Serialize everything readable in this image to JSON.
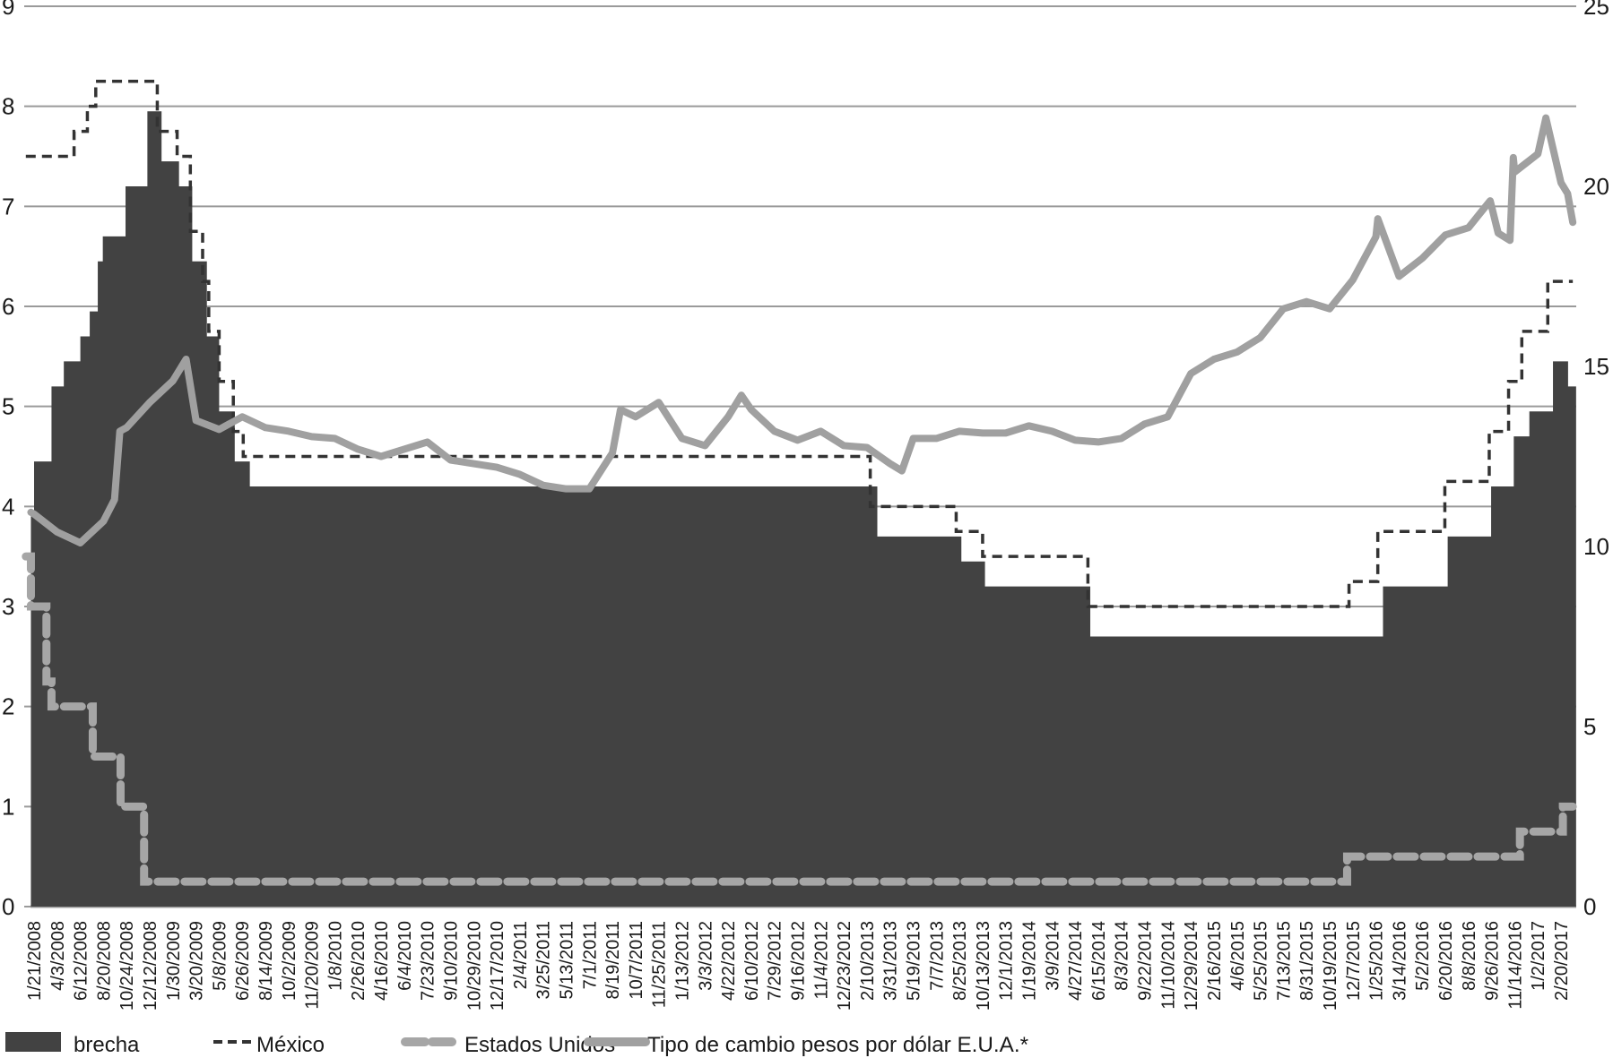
{
  "chart_data": {
    "type": "area+line",
    "title": "",
    "left_axis": {
      "range": [
        0,
        9
      ],
      "ticks": [
        0,
        1,
        2,
        3,
        4,
        5,
        6,
        7,
        8,
        9
      ],
      "grid": true
    },
    "right_axis": {
      "range": [
        0,
        25
      ],
      "ticks": [
        0,
        5,
        10,
        15,
        20,
        25
      ]
    },
    "x_tick_labels": [
      "1/21/2008",
      "4/3/2008",
      "6/12/2008",
      "8/20/2008",
      "10/24/2008",
      "12/12/2008",
      "1/30/2009",
      "3/20/2009",
      "5/8/2009",
      "6/26/2009",
      "8/14/2009",
      "10/2/2009",
      "11/20/2009",
      "1/8/2010",
      "2/26/2010",
      "4/16/2010",
      "6/4/2010",
      "7/23/2010",
      "9/10/2010",
      "10/29/2010",
      "12/17/2010",
      "2/4/2011",
      "3/25/2011",
      "5/13/2011",
      "7/1/2011",
      "8/19/2011",
      "10/7/2011",
      "11/25/2011",
      "1/13/2012",
      "3/3/2012",
      "4/22/2012",
      "6/10/2012",
      "7/29/2012",
      "9/16/2012",
      "11/4/2012",
      "12/23/2012",
      "2/10/2013",
      "3/31/2013",
      "5/19/2013",
      "7/7/2013",
      "8/25/2013",
      "10/13/2013",
      "12/1/2013",
      "1/19/2014",
      "3/9/2014",
      "4/27/2014",
      "6/15/2014",
      "8/3/2014",
      "9/22/2014",
      "11/10/2014",
      "12/29/2014",
      "2/16/2015",
      "4/6/2015",
      "5/25/2015",
      "7/13/2015",
      "8/31/2015",
      "10/19/2015",
      "12/7/2015",
      "1/25/2016",
      "3/14/2016",
      "5/2/2016",
      "6/20/2016",
      "8/8/2016",
      "9/26/2016",
      "11/14/2016",
      "1/2/2017",
      "2/20/2017"
    ],
    "legend_placement": "bottom",
    "series": [
      {
        "name": "brecha",
        "type": "step-area",
        "axis": "left",
        "color": "#424242",
        "end": "3/24/2017",
        "steps": [
          [
            "1/11/2008",
            3.9
          ],
          [
            "1/21/2008",
            4.45
          ],
          [
            "3/16/2008",
            5.2
          ],
          [
            "4/23/2008",
            5.45
          ],
          [
            "6/12/2008",
            5.7
          ],
          [
            "7/10/2008",
            5.95
          ],
          [
            "8/3/2008",
            6.45
          ],
          [
            "8/18/2008",
            6.7
          ],
          [
            "10/21/2008",
            7.2
          ],
          [
            "12/7/2008",
            7.95
          ],
          [
            "1/6/2009",
            7.45
          ],
          [
            "2/12/2009",
            7.2
          ],
          [
            "3/12/2009",
            6.45
          ],
          [
            "4/12/2009",
            5.7
          ],
          [
            "5/8/2009",
            4.95
          ],
          [
            "6/10/2009",
            4.45
          ],
          [
            "7/12/2009",
            4.2
          ],
          [
            "3/4/2013",
            3.7
          ],
          [
            "8/29/2013",
            3.45
          ],
          [
            "10/18/2013",
            3.2
          ],
          [
            "5/29/2014",
            2.7
          ],
          [
            "2/9/2016",
            3.2
          ],
          [
            "6/25/2016",
            3.7
          ],
          [
            "9/25/2016",
            4.2
          ],
          [
            "11/12/2016",
            4.7
          ],
          [
            "12/15/2016",
            4.95
          ],
          [
            "2/3/2017",
            5.45
          ],
          [
            "3/7/2017",
            5.2
          ]
        ]
      },
      {
        "name": "México",
        "type": "step-line-dashed",
        "axis": "left",
        "color": "#333333",
        "end": "3/17/2017",
        "steps": [
          [
            "12/26/2007",
            7.5
          ],
          [
            "5/24/2008",
            7.75
          ],
          [
            "7/3/2008",
            8.0
          ],
          [
            "7/28/2008",
            8.25
          ],
          [
            "12/28/2008",
            7.75
          ],
          [
            "2/8/2009",
            7.5
          ],
          [
            "3/8/2009",
            6.75
          ],
          [
            "4/3/2009",
            6.25
          ],
          [
            "4/16/2009",
            5.75
          ],
          [
            "5/8/2009",
            5.25
          ],
          [
            "6/7/2009",
            4.75
          ],
          [
            "6/28/2009",
            4.5
          ],
          [
            "2/17/2013",
            4.0
          ],
          [
            "8/18/2013",
            3.75
          ],
          [
            "10/13/2013",
            3.5
          ],
          [
            "5/24/2014",
            3.0
          ],
          [
            "11/29/2015",
            3.25
          ],
          [
            "1/29/2016",
            3.75
          ],
          [
            "6/19/2016",
            4.25
          ],
          [
            "9/21/2016",
            4.75
          ],
          [
            "11/1/2016",
            5.25
          ],
          [
            "11/29/2016",
            5.75
          ],
          [
            "1/23/2017",
            6.25
          ]
        ]
      },
      {
        "name": "Estados Unidos",
        "type": "step-line-dashed",
        "axis": "left",
        "color": "#a6a6a6",
        "end": "3/17/2017",
        "steps": [
          [
            "12/26/2007",
            3.5
          ],
          [
            "1/11/2008",
            3.0
          ],
          [
            "2/29/2008",
            2.25
          ],
          [
            "3/16/2008",
            2.0
          ],
          [
            "7/19/2008",
            1.5
          ],
          [
            "10/7/2008",
            1.0
          ],
          [
            "11/30/2008",
            0.25
          ],
          [
            "11/25/2015",
            0.5
          ],
          [
            "11/25/2016",
            0.75
          ],
          [
            "2/24/2017",
            1.0
          ]
        ]
      },
      {
        "name": "Tipo de cambio pesos por dólar E.U.A.*",
        "type": "line",
        "axis": "right",
        "color": "#a0a0a0",
        "points": [
          [
            "1/11/2008",
            10.95
          ],
          [
            "1/21/2008",
            10.9
          ],
          [
            "4/3/2008",
            10.4
          ],
          [
            "6/12/2008",
            10.1
          ],
          [
            "8/20/2008",
            10.7
          ],
          [
            "9/20/2008",
            11.3
          ],
          [
            "10/5/2008",
            13.2
          ],
          [
            "10/24/2008",
            13.3
          ],
          [
            "12/12/2008",
            14.0
          ],
          [
            "1/30/2009",
            14.6
          ],
          [
            "2/27/2009",
            15.2
          ],
          [
            "3/20/2009",
            13.5
          ],
          [
            "5/8/2009",
            13.25
          ],
          [
            "6/26/2009",
            13.6
          ],
          [
            "8/14/2009",
            13.3
          ],
          [
            "10/2/2009",
            13.2
          ],
          [
            "11/20/2009",
            13.05
          ],
          [
            "1/8/2010",
            13.0
          ],
          [
            "2/26/2010",
            12.7
          ],
          [
            "4/16/2010",
            12.5
          ],
          [
            "6/4/2010",
            12.7
          ],
          [
            "7/23/2010",
            12.9
          ],
          [
            "9/10/2010",
            12.4
          ],
          [
            "10/29/2010",
            12.3
          ],
          [
            "12/17/2010",
            12.2
          ],
          [
            "2/4/2011",
            12.0
          ],
          [
            "3/25/2011",
            11.7
          ],
          [
            "5/13/2011",
            11.6
          ],
          [
            "7/1/2011",
            11.6
          ],
          [
            "8/19/2011",
            12.6
          ],
          [
            "9/5/2011",
            13.8
          ],
          [
            "10/7/2011",
            13.6
          ],
          [
            "11/25/2011",
            14.0
          ],
          [
            "1/13/2012",
            13.0
          ],
          [
            "3/3/2012",
            12.8
          ],
          [
            "4/22/2012",
            13.6
          ],
          [
            "5/20/2012",
            14.2
          ],
          [
            "6/10/2012",
            13.8
          ],
          [
            "7/29/2012",
            13.2
          ],
          [
            "9/16/2012",
            12.95
          ],
          [
            "11/4/2012",
            13.2
          ],
          [
            "12/23/2012",
            12.8
          ],
          [
            "2/10/2013",
            12.75
          ],
          [
            "3/31/2013",
            12.3
          ],
          [
            "4/25/2013",
            12.1
          ],
          [
            "5/19/2013",
            13.0
          ],
          [
            "7/7/2013",
            13.0
          ],
          [
            "8/25/2013",
            13.2
          ],
          [
            "10/13/2013",
            13.15
          ],
          [
            "12/1/2013",
            13.15
          ],
          [
            "1/19/2014",
            13.35
          ],
          [
            "3/9/2014",
            13.2
          ],
          [
            "4/27/2014",
            12.95
          ],
          [
            "6/15/2014",
            12.9
          ],
          [
            "8/3/2014",
            13.0
          ],
          [
            "9/22/2014",
            13.4
          ],
          [
            "11/10/2014",
            13.6
          ],
          [
            "12/29/2014",
            14.8
          ],
          [
            "2/16/2015",
            15.2
          ],
          [
            "4/6/2015",
            15.4
          ],
          [
            "5/25/2015",
            15.8
          ],
          [
            "7/13/2015",
            16.6
          ],
          [
            "8/31/2015",
            16.8
          ],
          [
            "10/19/2015",
            16.6
          ],
          [
            "12/7/2015",
            17.4
          ],
          [
            "1/25/2016",
            18.6
          ],
          [
            "1/29/2016",
            19.1
          ],
          [
            "3/14/2016",
            17.5
          ],
          [
            "5/2/2016",
            18.0
          ],
          [
            "6/20/2016",
            18.65
          ],
          [
            "8/8/2016",
            18.85
          ],
          [
            "9/23/2016",
            19.6
          ],
          [
            "10/10/2016",
            18.7
          ],
          [
            "11/4/2016",
            18.5
          ],
          [
            "11/11/2016",
            20.8
          ],
          [
            "11/14/2016",
            20.4
          ],
          [
            "1/2/2017",
            20.9
          ],
          [
            "1/19/2017",
            21.9
          ],
          [
            "2/20/2017",
            20.1
          ],
          [
            "3/6/2017",
            19.8
          ],
          [
            "3/17/2017",
            19.0
          ]
        ]
      }
    ]
  },
  "legend": {
    "brecha": "brecha",
    "mexico": "México",
    "usa": "Estados Unidos",
    "fx": "Tipo de cambio pesos por dólar E.U.A.*"
  }
}
